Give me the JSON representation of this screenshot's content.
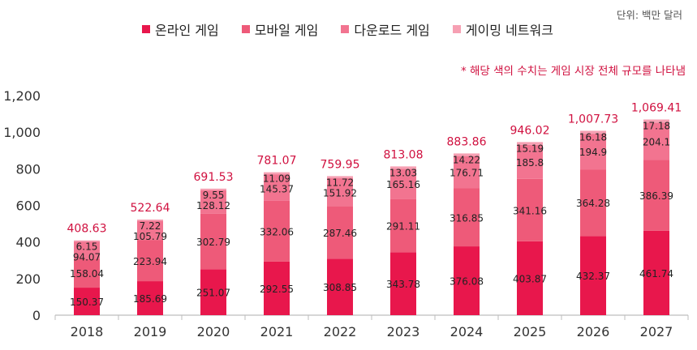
{
  "unit_label": "단위: 백만 달러",
  "note": "* 해당 색의 수치는 게임 시장 전체 규모를 나타냄",
  "colors": {
    "online": "#e8174c",
    "mobile": "#ee5a79",
    "download": "#f27490",
    "network": "#f6a0b3",
    "total_text": "#d0103f",
    "axis_text": "#333333",
    "seg_text": "#222222"
  },
  "legend": [
    {
      "label": "온라인 게임",
      "color": "#e8174c"
    },
    {
      "label": "모바일 게임",
      "color": "#ee5a79"
    },
    {
      "label": "다운로드 게임",
      "color": "#f27490"
    },
    {
      "label": "게이밍 네트워크",
      "color": "#f6a0b3"
    }
  ],
  "chart_data": {
    "type": "bar",
    "stacked": true,
    "categories": [
      "2018",
      "2019",
      "2020",
      "2021",
      "2022",
      "2023",
      "2024",
      "2025",
      "2026",
      "2027"
    ],
    "series": [
      {
        "name": "온라인 게임",
        "values": [
          150.37,
          185.69,
          251.07,
          292.55,
          308.85,
          343.78,
          376.08,
          403.87,
          432.37,
          461.74
        ]
      },
      {
        "name": "모바일 게임",
        "values": [
          158.04,
          223.94,
          302.79,
          332.06,
          287.46,
          291.11,
          316.85,
          341.16,
          364.28,
          386.39
        ]
      },
      {
        "name": "다운로드 게임",
        "values": [
          94.07,
          105.79,
          128.12,
          145.37,
          151.92,
          165.16,
          176.71,
          185.8,
          194.9,
          204.1
        ]
      },
      {
        "name": "게이밍 네트워크",
        "values": [
          6.15,
          7.22,
          9.55,
          11.09,
          11.72,
          13.03,
          14.22,
          15.19,
          16.18,
          17.18
        ]
      }
    ],
    "totals": [
      "408.63",
      "522.64",
      "691.53",
      "781.07",
      "759.95",
      "813.08",
      "883.86",
      "946.02",
      "1,007.73",
      "1,069.41"
    ],
    "ylim": [
      0,
      1200
    ],
    "yticks": [
      0,
      200,
      400,
      600,
      800,
      1000,
      1200
    ],
    "ytick_labels": [
      "0",
      "200",
      "400",
      "600",
      "800",
      "1,000",
      "1,200"
    ],
    "grid": false,
    "legend_position": "top"
  }
}
